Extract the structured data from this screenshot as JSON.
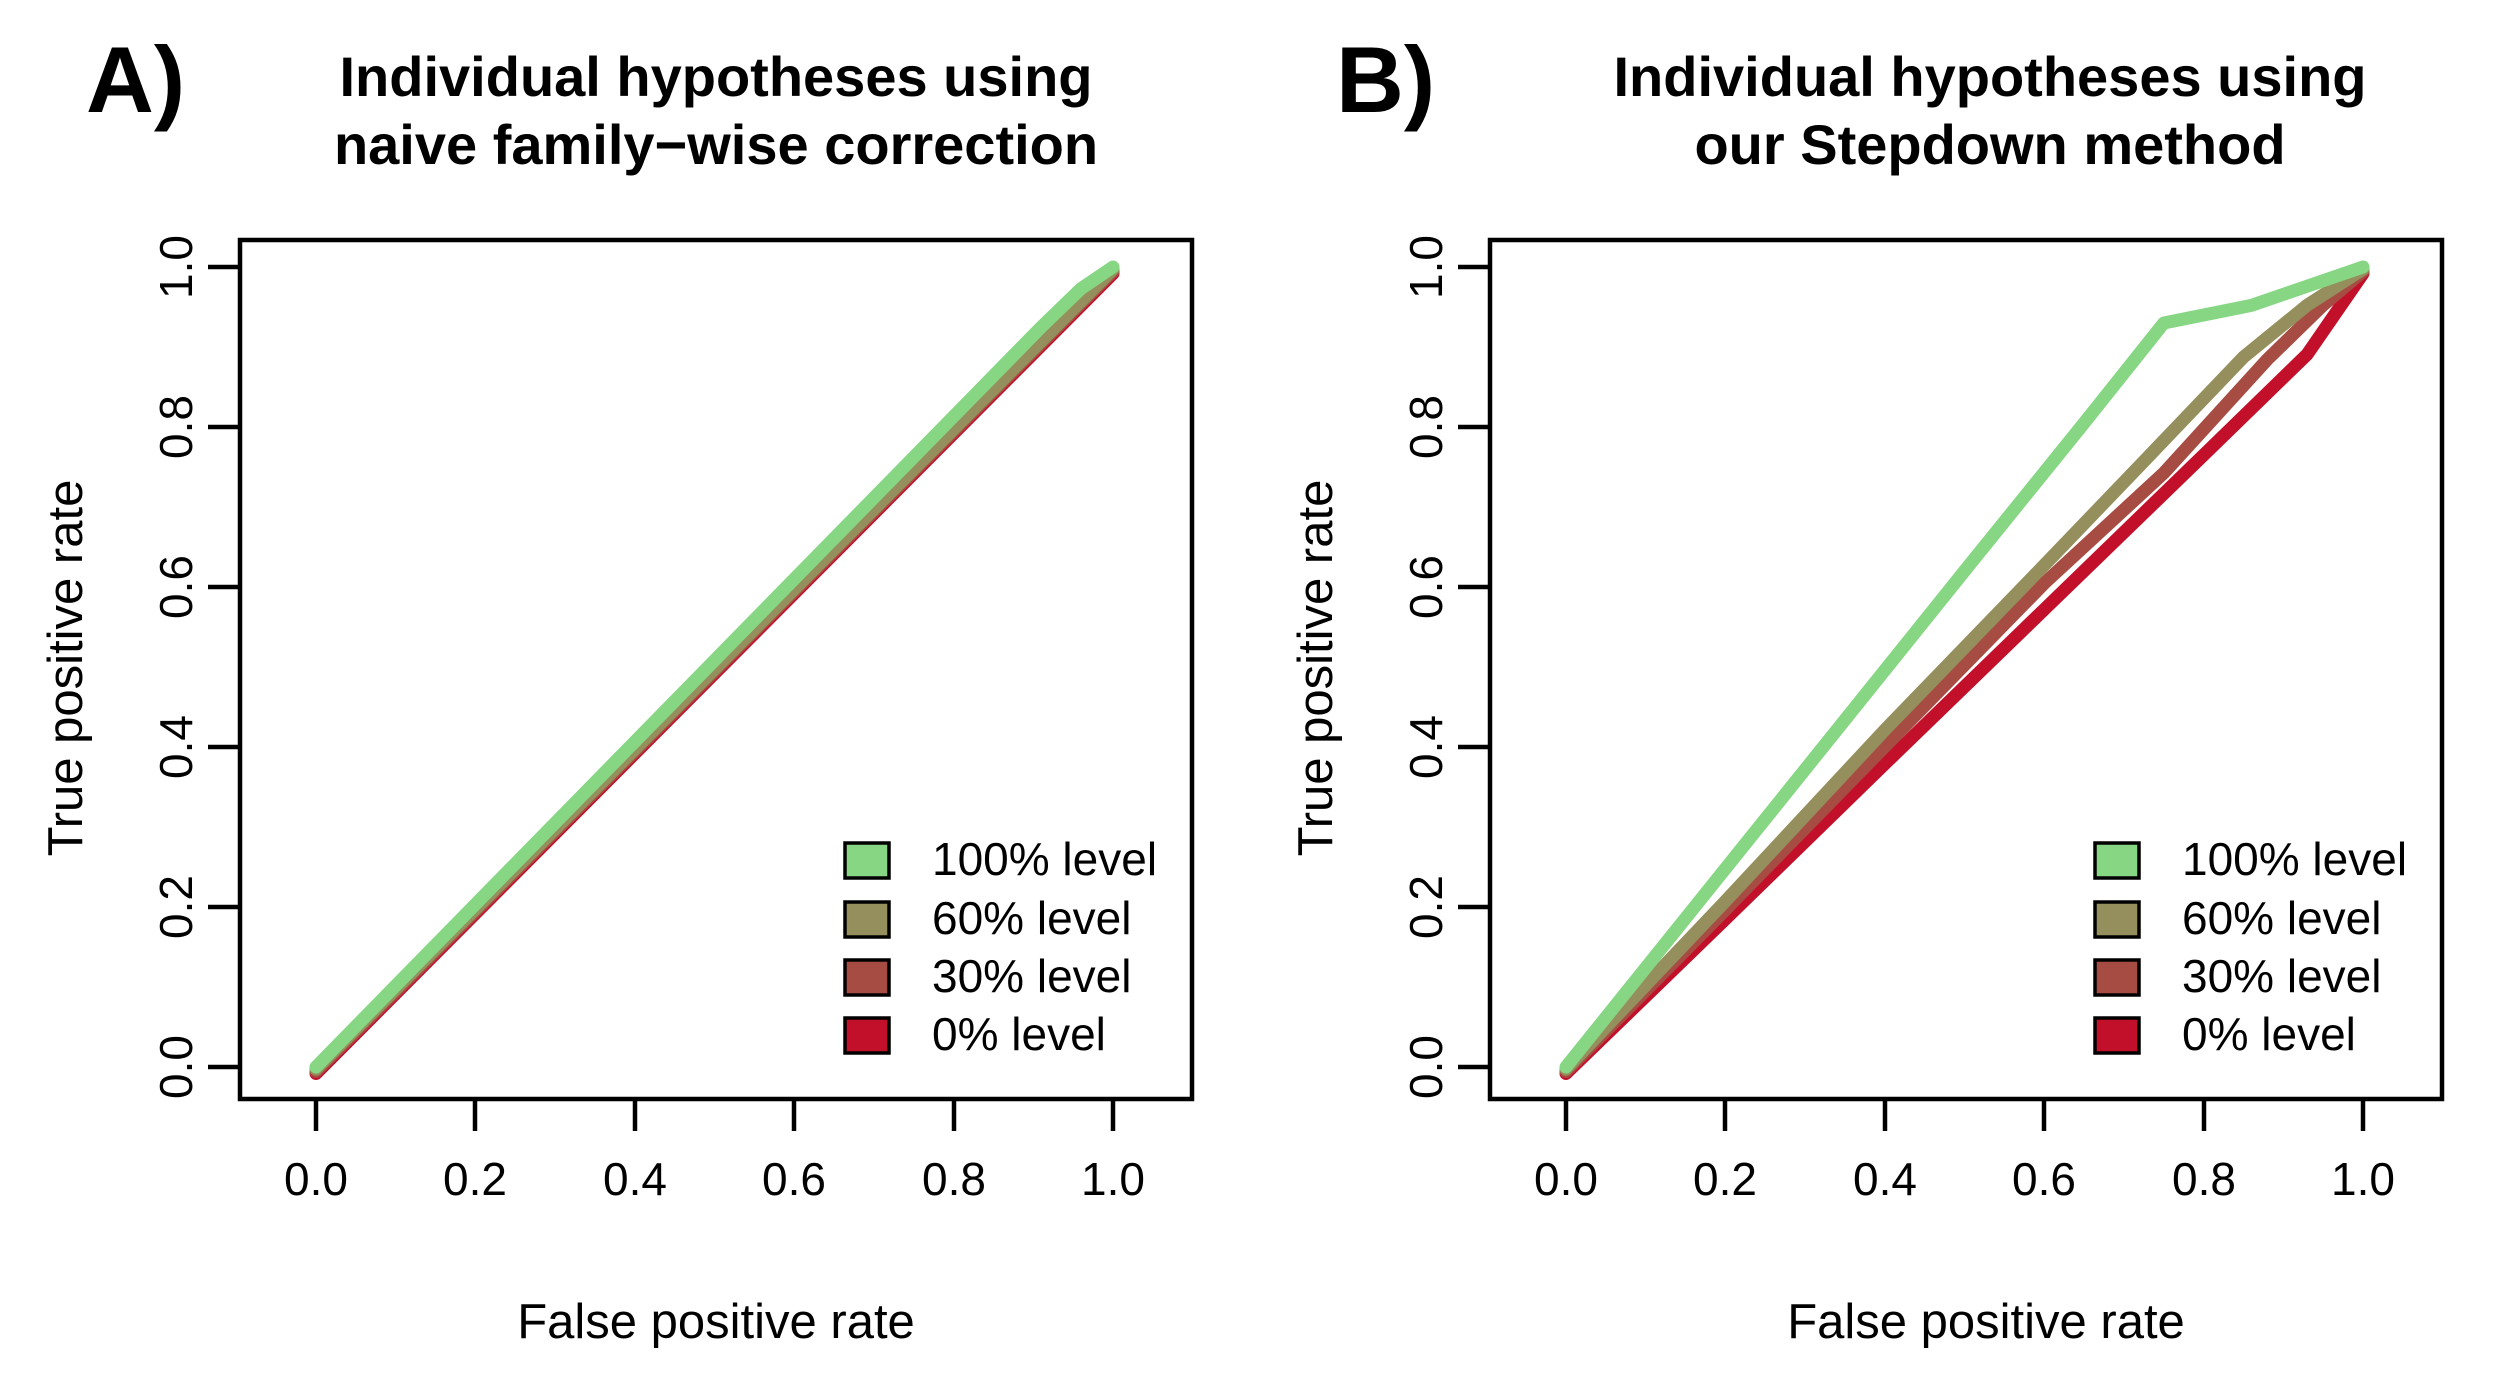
{
  "figure": {
    "background": "#ffffff",
    "panels": [
      {
        "label": "A)",
        "title_line1": "Individual hypotheses using",
        "title_line2": "naive family−wise correction"
      },
      {
        "label": "B)",
        "title_line1": "Individual hypotheses using",
        "title_line2": "our Stepdown method"
      }
    ]
  },
  "chart_data": [
    {
      "type": "line",
      "title": "Individual hypotheses using naive family−wise correction",
      "xlabel": "False positive rate",
      "ylabel": "True positive rate",
      "xlim": [
        0,
        1
      ],
      "ylim": [
        0,
        1
      ],
      "x_ticks": [
        "0.0",
        "0.2",
        "0.4",
        "0.6",
        "0.8",
        "1.0"
      ],
      "y_ticks": [
        "0.0",
        "0.2",
        "0.4",
        "0.6",
        "0.8",
        "1.0"
      ],
      "grid": false,
      "legend_position": "bottom-right",
      "series": [
        {
          "name": "100% level",
          "color": "#86D683",
          "points": [
            [
              0,
              0
            ],
            [
              0.91,
              0.925
            ],
            [
              0.96,
              0.973
            ],
            [
              1,
              1
            ]
          ]
        },
        {
          "name": "60% level",
          "color": "#948F5C",
          "points": [
            [
              0,
              0
            ],
            [
              1,
              1
            ]
          ]
        },
        {
          "name": "30% level",
          "color": "#A74C43",
          "points": [
            [
              0,
              0
            ],
            [
              1,
              1
            ]
          ]
        },
        {
          "name": "0% level",
          "color": "#C2102A",
          "points": [
            [
              0,
              0
            ],
            [
              1,
              1
            ]
          ]
        }
      ]
    },
    {
      "type": "line",
      "title": "Individual hypotheses using our Stepdown method",
      "xlabel": "False positive rate",
      "ylabel": "True positive rate",
      "xlim": [
        0,
        1
      ],
      "ylim": [
        0,
        1
      ],
      "x_ticks": [
        "0.0",
        "0.2",
        "0.4",
        "0.6",
        "0.8",
        "1.0"
      ],
      "y_ticks": [
        "0.0",
        "0.2",
        "0.4",
        "0.6",
        "0.8",
        "1.0"
      ],
      "grid": false,
      "legend_position": "bottom-right",
      "series": [
        {
          "name": "100% level",
          "color": "#86D683",
          "points": [
            [
              0,
              0
            ],
            [
              0.25,
              0.31
            ],
            [
              0.5,
              0.62
            ],
            [
              0.65,
              0.805
            ],
            [
              0.75,
              0.93
            ],
            [
              0.86,
              0.952
            ],
            [
              1,
              1
            ]
          ]
        },
        {
          "name": "60% level",
          "color": "#948F5C",
          "points": [
            [
              0,
              0
            ],
            [
              0.2,
              0.21
            ],
            [
              0.4,
              0.424
            ],
            [
              0.6,
              0.63
            ],
            [
              0.73,
              0.765
            ],
            [
              0.85,
              0.89
            ],
            [
              0.93,
              0.955
            ],
            [
              1,
              1
            ]
          ]
        },
        {
          "name": "30% level",
          "color": "#A74C43",
          "points": [
            [
              0,
              0
            ],
            [
              0.2,
              0.202
            ],
            [
              0.4,
              0.406
            ],
            [
              0.6,
              0.61
            ],
            [
              0.75,
              0.748
            ],
            [
              0.88,
              0.89
            ],
            [
              0.95,
              0.958
            ],
            [
              1,
              1
            ]
          ]
        },
        {
          "name": "0% level",
          "color": "#C2102A",
          "points": [
            [
              0,
              0
            ],
            [
              0.2,
              0.193
            ],
            [
              0.4,
              0.387
            ],
            [
              0.6,
              0.58
            ],
            [
              0.8,
              0.773
            ],
            [
              0.93,
              0.899
            ],
            [
              1,
              1
            ]
          ]
        }
      ]
    }
  ]
}
